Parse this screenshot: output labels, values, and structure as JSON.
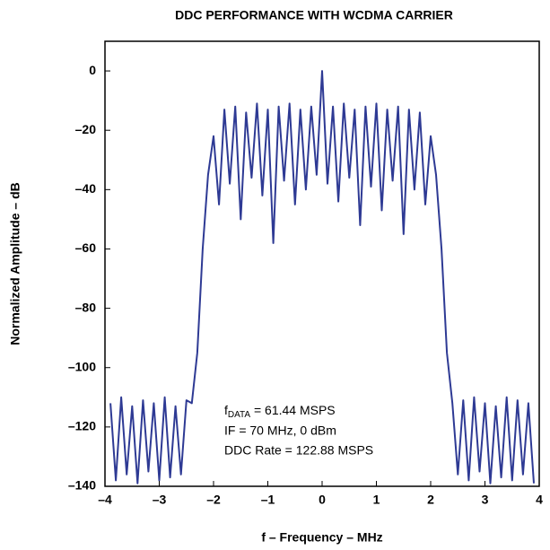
{
  "chart_data": {
    "type": "line",
    "title": "DDC PERFORMANCE WITH WCDMA CARRIER",
    "x_label": "f – Frequency – MHz",
    "y_label": "Normalized Amplitude – dB",
    "annotation": {
      "f": "f",
      "sub": "DATA",
      "rest": " = 61.44 MSPS",
      "line2": "IF = 70 MHz, 0 dBm",
      "line3": "DDC Rate = 122.88 MSPS"
    },
    "xlim": [
      -4,
      4
    ],
    "ylim": [
      -140,
      10
    ],
    "xticks": [
      {
        "value": -4,
        "label": "–4"
      },
      {
        "value": -3,
        "label": "–3"
      },
      {
        "value": -2,
        "label": "–2"
      },
      {
        "value": -1,
        "label": "–1"
      },
      0,
      1,
      2,
      3,
      4
    ],
    "yticks": [
      0,
      {
        "value": -20,
        "label": "–20"
      },
      {
        "value": -40,
        "label": "–40"
      },
      {
        "value": -60,
        "label": "–60"
      },
      {
        "value": -80,
        "label": "–80"
      },
      {
        "value": -100,
        "label": "–100"
      },
      {
        "value": -120,
        "label": "–120"
      },
      {
        "value": -140,
        "label": "–140"
      }
    ],
    "grid": false,
    "x": [
      -3.9,
      -3.8,
      -3.7,
      -3.6,
      -3.5,
      -3.4,
      -3.3,
      -3.2,
      -3.1,
      -3.0,
      -2.9,
      -2.8,
      -2.7,
      -2.6,
      -2.5,
      -2.4,
      -2.3,
      -2.2,
      -2.1,
      -2.0,
      -1.9,
      -1.8,
      -1.7,
      -1.6,
      -1.5,
      -1.4,
      -1.3,
      -1.2,
      -1.1,
      -1.0,
      -0.9,
      -0.8,
      -0.7,
      -0.6,
      -0.5,
      -0.4,
      -0.3,
      -0.2,
      -0.1,
      0.0,
      0.1,
      0.2,
      0.3,
      0.4,
      0.5,
      0.6,
      0.7,
      0.8,
      0.9,
      1.0,
      1.1,
      1.2,
      1.3,
      1.4,
      1.5,
      1.6,
      1.7,
      1.8,
      1.9,
      2.0,
      2.1,
      2.2,
      2.3,
      2.4,
      2.5,
      2.6,
      2.7,
      2.8,
      2.9,
      3.0,
      3.1,
      3.2,
      3.3,
      3.4,
      3.5,
      3.6,
      3.7,
      3.8,
      3.9
    ],
    "series": [
      {
        "color": "#2e3a94",
        "values": [
          -112,
          -138,
          -110,
          -136,
          -113,
          -139,
          -111,
          -135,
          -112,
          -138,
          -110,
          -137,
          -113,
          -136,
          -111,
          -112,
          -95,
          -60,
          -35,
          -22,
          -45,
          -13,
          -38,
          -12,
          -50,
          -14,
          -36,
          -11,
          -42,
          -13,
          -58,
          -12,
          -37,
          -11,
          -45,
          -13,
          -40,
          -12,
          -35,
          0,
          -38,
          -12,
          -44,
          -11,
          -36,
          -13,
          -52,
          -12,
          -39,
          -11,
          -47,
          -13,
          -37,
          -12,
          -55,
          -13,
          -40,
          -14,
          -45,
          -22,
          -35,
          -60,
          -95,
          -112,
          -136,
          -111,
          -138,
          -110,
          -135,
          -112,
          -139,
          -113,
          -137,
          -110,
          -138,
          -111,
          -136,
          -112,
          -139
        ]
      }
    ]
  }
}
